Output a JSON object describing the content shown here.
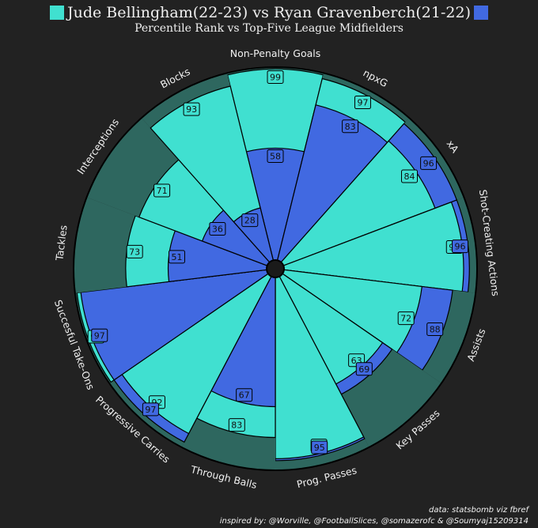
{
  "title": {
    "player_a": "Jude Bellingham(22-23)",
    "vs": " vs ",
    "player_b": "Ryan Gravenberch(21-22)",
    "subtitle": "Percentile Rank vs Top-Five League Midfielders"
  },
  "colors": {
    "background": "#222222",
    "player_a": "#40e0d0",
    "player_b": "#4169e1",
    "band": "#2e675f",
    "text": "#f0f0f0",
    "edge": "#000000"
  },
  "chart_data": {
    "type": "radar-pizza",
    "title": "Jude Bellingham(22-23) vs Ryan Gravenberch(21-22)",
    "subtitle": "Percentile Rank vs Top-Five League Midfielders",
    "range": [
      0,
      100
    ],
    "categories": [
      "Non-Penalty Goals",
      "npxG",
      "xA",
      "Shot-Creating Actions",
      "Assists",
      "Key Passes",
      "Prog. Passes",
      "Through Balls",
      "Progressive Carries",
      "Succesful Take-Ons",
      "Tackles",
      "Interceptions",
      "Blocks"
    ],
    "series": [
      {
        "name": "Jude Bellingham(22-23)",
        "values": [
          99,
          97,
          84,
          93,
          72,
          63,
          94,
          83,
          92,
          99,
          73,
          71,
          93
        ]
      },
      {
        "name": "Ryan Gravenberch(21-22)",
        "values": [
          58,
          83,
          96,
          96,
          88,
          69,
          95,
          67,
          97,
          97,
          51,
          36,
          28
        ]
      }
    ]
  },
  "credits": {
    "data": "data: statsbomb viz fbref",
    "inspired": "inspired by: @Worville, @FootballSlices, @somazerofc & @Soumyaj15209314"
  }
}
